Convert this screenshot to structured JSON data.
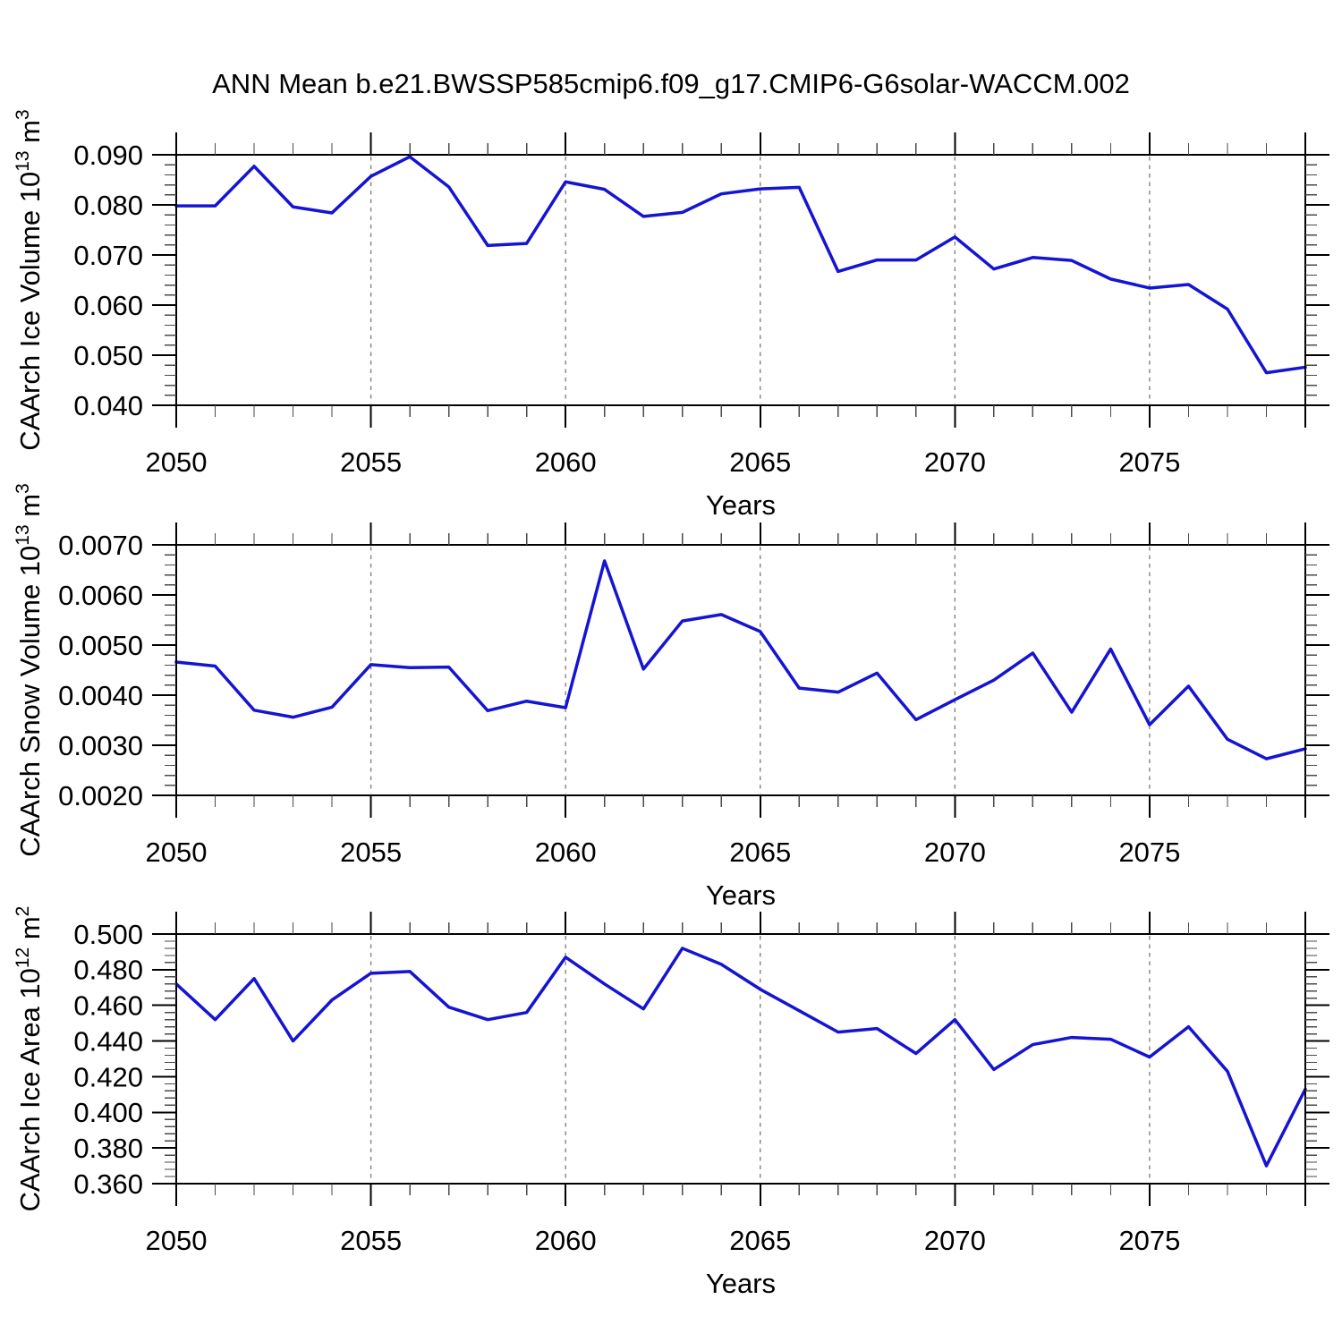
{
  "title": "ANN Mean b.e21.BWSSP585cmip6.f09_g17.CMIP6-G6solar-WACCM.002",
  "colors": {
    "line": "#1414d2",
    "frame": "#000000",
    "major_tick": "#000000",
    "minor_tick": "#4a4a4a",
    "grid": "#7a7a7a",
    "text": "#000000",
    "background": "#ffffff"
  },
  "chart_data": {
    "type": "line",
    "title": "ANN Mean b.e21.BWSSP585cmip6.f09_g17.CMIP6-G6solar-WACCM.002",
    "xlabel": "Years",
    "x": [
      2050,
      2051,
      2052,
      2053,
      2054,
      2055,
      2056,
      2057,
      2058,
      2059,
      2060,
      2061,
      2062,
      2063,
      2064,
      2065,
      2066,
      2067,
      2068,
      2069,
      2070,
      2071,
      2072,
      2073,
      2074,
      2075,
      2076,
      2077,
      2078,
      2079
    ],
    "xlim": [
      2050,
      2079
    ],
    "x_major_ticks": [
      2050,
      2055,
      2060,
      2065,
      2070,
      2075
    ],
    "x_minor_step": 1,
    "x_gridlines": [
      2055,
      2060,
      2065,
      2070,
      2075
    ],
    "grid_style": "dashed-vertical",
    "legend": "none",
    "panels": [
      {
        "id": "ice-volume",
        "ylabel": "CAArch Ice Volume 10^13^ m^3^",
        "ylim": [
          0.04,
          0.09
        ],
        "ytick_step": 0.01,
        "yminor_step": 0.002,
        "ytick_decimals": 3,
        "values": [
          0.0798,
          0.0798,
          0.0877,
          0.0796,
          0.0784,
          0.0857,
          0.0896,
          0.0836,
          0.0719,
          0.0723,
          0.0846,
          0.0831,
          0.0777,
          0.0785,
          0.0822,
          0.0832,
          0.0835,
          0.0667,
          0.069,
          0.069,
          0.0736,
          0.0672,
          0.0695,
          0.0689,
          0.0652,
          0.0634,
          0.0641,
          0.0592,
          0.0465,
          0.0476
        ]
      },
      {
        "id": "snow-volume",
        "ylabel": "CAArch Snow Volume 10^13^ m^3^",
        "ylim": [
          0.002,
          0.007
        ],
        "ytick_step": 0.001,
        "yminor_step": 0.0002,
        "ytick_decimals": 4,
        "values": [
          0.00466,
          0.00458,
          0.0037,
          0.00356,
          0.00376,
          0.00461,
          0.00455,
          0.00456,
          0.00369,
          0.00388,
          0.00375,
          0.00668,
          0.00452,
          0.00548,
          0.00561,
          0.00527,
          0.00414,
          0.00406,
          0.00444,
          0.00351,
          0.00391,
          0.0043,
          0.00484,
          0.00366,
          0.00492,
          0.00341,
          0.00418,
          0.00312,
          0.00273,
          0.00293
        ]
      },
      {
        "id": "ice-area",
        "ylabel": "CAArch Ice Area 10^12^ m^2^",
        "ylim": [
          0.36,
          0.5
        ],
        "ytick_step": 0.02,
        "yminor_step": 0.004,
        "ytick_decimals": 3,
        "values": [
          0.472,
          0.452,
          0.475,
          0.44,
          0.463,
          0.478,
          0.479,
          0.459,
          0.452,
          0.456,
          0.487,
          0.472,
          0.458,
          0.492,
          0.483,
          0.469,
          0.457,
          0.445,
          0.447,
          0.433,
          0.452,
          0.424,
          0.438,
          0.442,
          0.441,
          0.431,
          0.448,
          0.423,
          0.37,
          0.413
        ]
      }
    ]
  }
}
